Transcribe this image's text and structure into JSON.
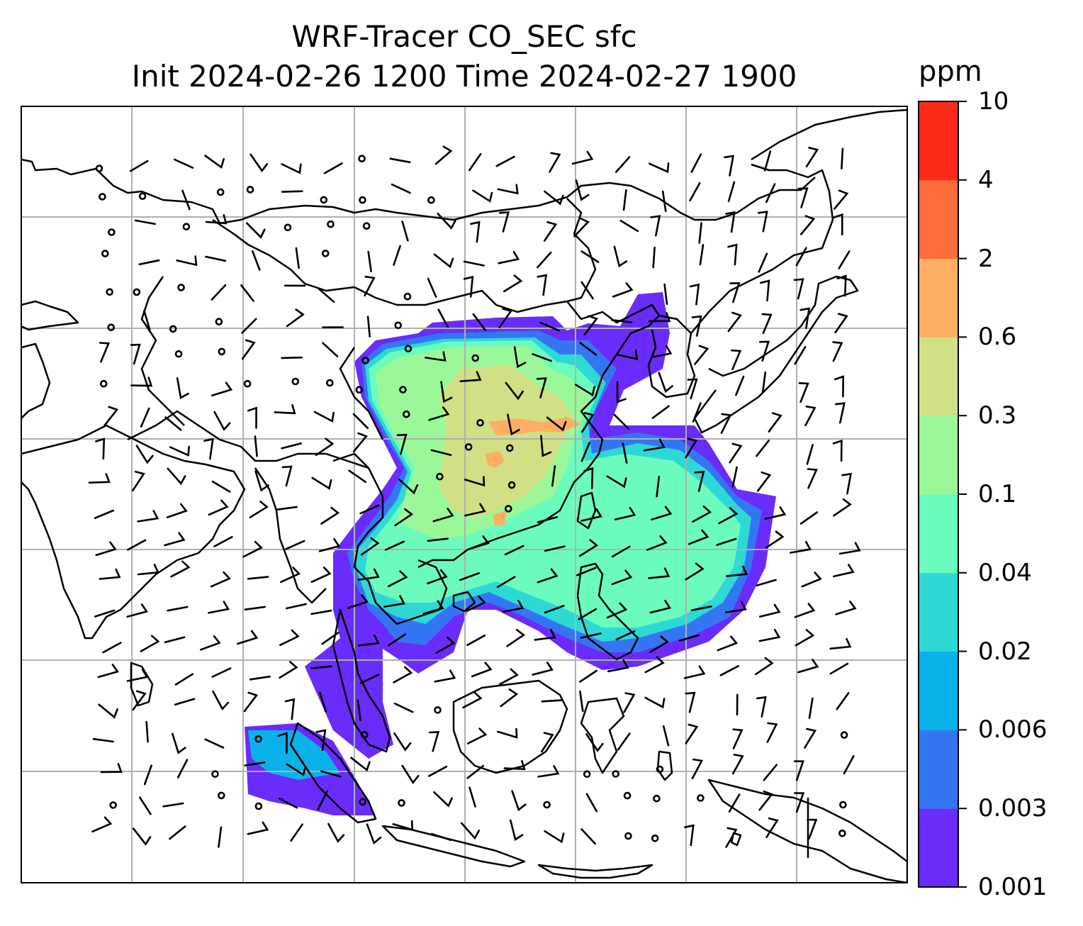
{
  "title_line1": "WRF-Tracer CO_SEC sfc",
  "title_line2": "Init 2024-02-26 1200 Time 2024-02-27 1900",
  "colorbar": {
    "unit": "ppm",
    "levels": [
      "0.001",
      "0.003",
      "0.006",
      "0.02",
      "0.04",
      "0.1",
      "0.3",
      "0.6",
      "2",
      "4",
      "10"
    ],
    "colors": [
      "#6a2cfb",
      "#3476f2",
      "#09b2e8",
      "#2ed8d5",
      "#6bfcbd",
      "#9bf898",
      "#d1e084",
      "#fcae63",
      "#fd6e3c",
      "#fb2a19"
    ]
  },
  "map": {
    "gridlines": true,
    "coastline_color": "#000000",
    "grid_color": "#b0b0b0",
    "wind_barbs": true
  }
}
